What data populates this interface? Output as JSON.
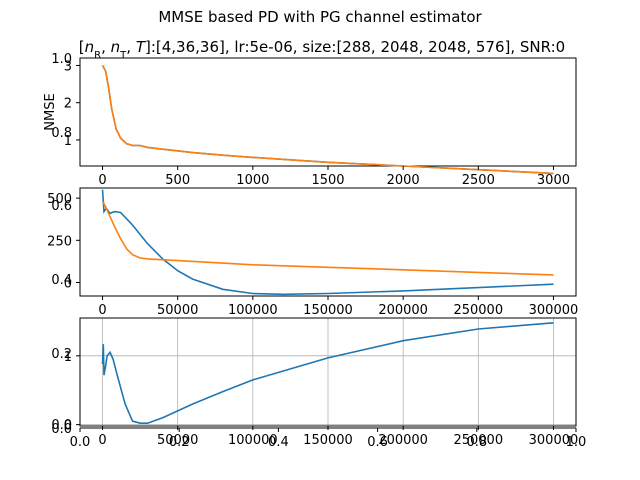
{
  "figure": {
    "suptitle": "MMSE based PD with PG channel estimator",
    "subtitle": "[n_R, n_T, T]:[4,36,36], lr:5e-06, size:[288, 2048, 2048, 576], SNR:0"
  },
  "colors": {
    "blue": "#1f77b4",
    "orange": "#ff7f0e",
    "grid": "#b0b0b0"
  },
  "chart_data": [
    {
      "type": "line",
      "panel": "top",
      "ylabel": "NMSE",
      "xlim": [
        -150,
        3150
      ],
      "x_ticks": [
        0,
        500,
        1000,
        1500,
        2000,
        2500,
        3000
      ],
      "y_ticks_left": [
        1,
        2,
        3
      ],
      "y_ticks_left2": [
        0.8,
        1.0
      ],
      "grid": false,
      "series": [
        {
          "color": "#1f77b4",
          "x": [
            0,
            20,
            40,
            60,
            90,
            120,
            160,
            200,
            250,
            300,
            400,
            600,
            800,
            1000,
            1500,
            2000,
            2500,
            3000
          ],
          "y": [
            3.0,
            2.85,
            2.4,
            1.85,
            1.3,
            1.05,
            0.9,
            0.85,
            0.85,
            0.8,
            0.75,
            0.66,
            0.59,
            0.53,
            0.4,
            0.3,
            0.2,
            0.1
          ]
        },
        {
          "color": "#ff7f0e",
          "x": [
            0,
            20,
            40,
            60,
            90,
            120,
            160,
            200,
            250,
            300,
            400,
            600,
            800,
            1000,
            1500,
            2000,
            2500,
            3000
          ],
          "y": [
            3.0,
            2.85,
            2.4,
            1.85,
            1.3,
            1.05,
            0.9,
            0.85,
            0.85,
            0.8,
            0.75,
            0.66,
            0.59,
            0.53,
            0.4,
            0.3,
            0.2,
            0.1
          ]
        }
      ]
    },
    {
      "type": "line",
      "panel": "middle",
      "xlim": [
        -15000,
        315000
      ],
      "x_ticks": [
        0,
        50000,
        100000,
        150000,
        200000,
        250000,
        300000
      ],
      "y_ticks_left": [
        0,
        250,
        500
      ],
      "y_ticks_left2": [
        0.4,
        0.6
      ],
      "grid": false,
      "series": [
        {
          "name": "",
          "color": "#1f77b4",
          "x": [
            0,
            1000,
            2500,
            5000,
            8000,
            12000,
            20000,
            30000,
            40000,
            50000,
            60000,
            80000,
            100000,
            120000,
            150000,
            200000,
            250000,
            300000
          ],
          "y": [
            550,
            420,
            440,
            410,
            420,
            415,
            340,
            230,
            140,
            70,
            20,
            -40,
            -65,
            -70,
            -65,
            -50,
            -30,
            -10
          ]
        },
        {
          "name": "",
          "color": "#ff7f0e",
          "x": [
            0,
            2000,
            5000,
            8000,
            12000,
            16000,
            20000,
            25000,
            30000,
            50000,
            100000,
            150000,
            200000,
            250000,
            300000
          ],
          "y": [
            480,
            450,
            390,
            330,
            260,
            200,
            165,
            145,
            140,
            130,
            105,
            90,
            75,
            60,
            45
          ]
        }
      ]
    },
    {
      "type": "line",
      "panel": "bottom",
      "xlim": [
        -15000,
        315000
      ],
      "x_ticks": [
        0,
        50000,
        100000,
        150000,
        200000,
        250000,
        300000
      ],
      "y_ticks_left": [
        0,
        1
      ],
      "y_ticks_left2": [
        0.0,
        0.2
      ],
      "y_ticks_outer": [
        0.0
      ],
      "x_ticks_outer": [
        "0.0",
        "0.2",
        "0.4",
        "0.6",
        "0.8",
        "1.0"
      ],
      "grid": true,
      "series": [
        {
          "name": "",
          "color": "#1f77b4",
          "x": [
            0,
            500,
            1000,
            2000,
            3000,
            5000,
            7000,
            10000,
            15000,
            20000,
            25000,
            30000,
            40000,
            60000,
            80000,
            100000,
            150000,
            200000,
            250000,
            300000
          ],
          "y": [
            0.88,
            1.17,
            0.72,
            0.85,
            1.0,
            1.05,
            0.95,
            0.7,
            0.3,
            0.05,
            0.02,
            0.02,
            0.1,
            0.3,
            0.48,
            0.65,
            0.97,
            1.22,
            1.39,
            1.48
          ]
        }
      ]
    }
  ]
}
